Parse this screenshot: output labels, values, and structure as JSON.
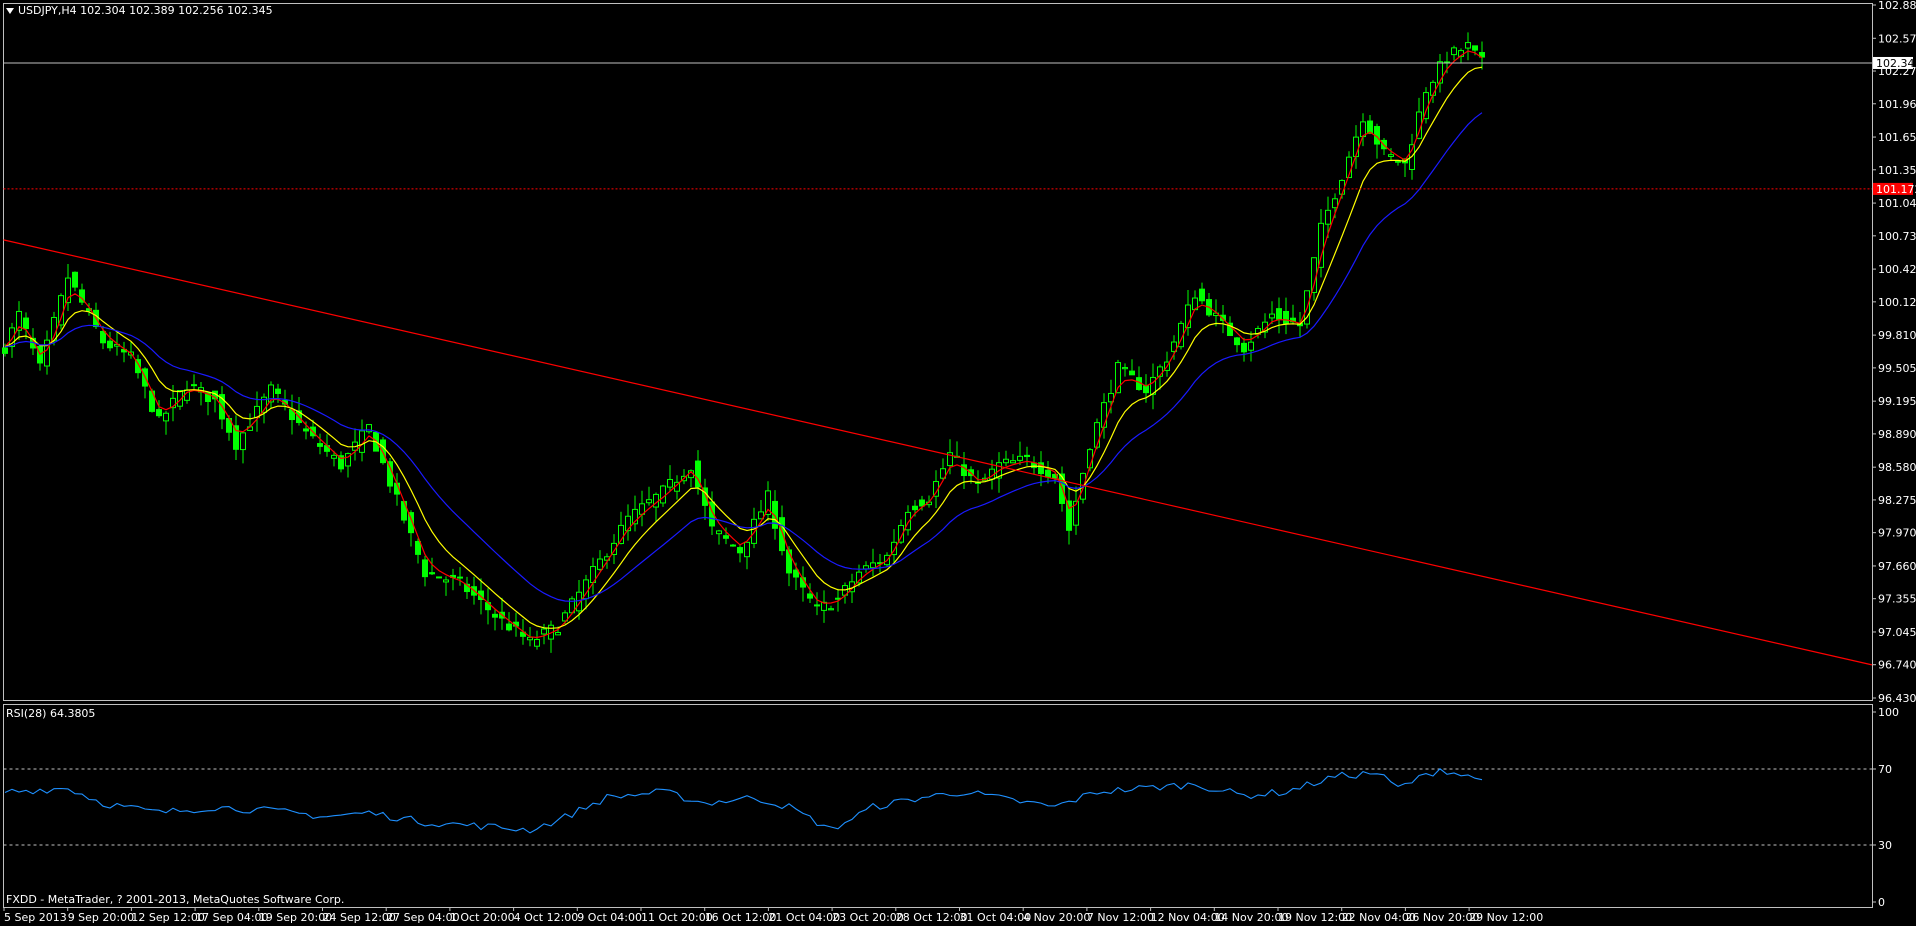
{
  "header": {
    "symbol": "USDJPY,H4",
    "open": "102.304",
    "high": "102.389",
    "low": "102.256",
    "close": "102.345"
  },
  "rsi": {
    "label": "RSI(28) 64.3805",
    "levels": [
      70,
      30
    ],
    "axis_labels": [
      "100",
      "70",
      "30",
      "0"
    ],
    "value": 64.3805
  },
  "copyright": "FXDD - MetaTrader, ? 2001-2013, MetaQuotes Software Corp.",
  "colors": {
    "background": "#000000",
    "bull_candle": "#00ff00",
    "fast_ma": "#ff0000",
    "mid_ma": "#ffff00",
    "slow_ma": "#1a1aff",
    "trendline": "#ff0000",
    "rsi_line": "#1e90ff",
    "price_label_bg": "#ffffff",
    "alert_label_bg": "#ff0000"
  },
  "chart_data": {
    "type": "candlestick",
    "symbol": "USDJPY",
    "timeframe": "H4",
    "price_axis_labels": [
      "102.885",
      "102.575",
      "102.270",
      "101.965",
      "101.655",
      "101.350",
      "101.040",
      "100.735",
      "100.425",
      "100.120",
      "99.810",
      "99.505",
      "99.195",
      "98.890",
      "98.580",
      "98.275",
      "97.970",
      "97.660",
      "97.355",
      "97.045",
      "96.740",
      "96.430"
    ],
    "y_range": [
      96.43,
      102.885
    ],
    "current_price_label": "102.345",
    "alert_level_label": "101.172",
    "time_axis_labels": [
      "5 Sep 2013",
      "9 Sep 20:00",
      "12 Sep 12:00",
      "17 Sep 04:00",
      "19 Sep 20:00",
      "24 Sep 12:00",
      "27 Sep 04:00",
      "1 Oct 20:00",
      "4 Oct 12:00",
      "9 Oct 04:00",
      "11 Oct 20:00",
      "16 Oct 12:00",
      "21 Oct 04:00",
      "23 Oct 20:00",
      "28 Oct 12:00",
      "31 Oct 04:00",
      "4 Nov 20:00",
      "7 Nov 12:00",
      "12 Nov 04:00",
      "14 Nov 20:00",
      "19 Nov 12:00",
      "22 Nov 04:00",
      "26 Nov 20:00",
      "29 Nov 12:00"
    ],
    "price_anchors": [
      [
        0,
        99.7
      ],
      [
        2,
        100.0
      ],
      [
        5,
        99.5
      ],
      [
        9,
        100.35
      ],
      [
        14,
        99.75
      ],
      [
        18,
        99.6
      ],
      [
        22,
        99.0
      ],
      [
        26,
        99.35
      ],
      [
        30,
        99.2
      ],
      [
        33,
        98.8
      ],
      [
        38,
        99.3
      ],
      [
        43,
        98.9
      ],
      [
        48,
        98.6
      ],
      [
        52,
        98.95
      ],
      [
        57,
        98.1
      ],
      [
        60,
        97.6
      ],
      [
        65,
        97.5
      ],
      [
        70,
        97.2
      ],
      [
        75,
        96.95
      ],
      [
        79,
        97.1
      ],
      [
        84,
        97.6
      ],
      [
        89,
        98.1
      ],
      [
        94,
        98.35
      ],
      [
        98,
        98.6
      ],
      [
        101,
        98.0
      ],
      [
        105,
        97.8
      ],
      [
        109,
        98.3
      ],
      [
        112,
        97.6
      ],
      [
        116,
        97.25
      ],
      [
        119,
        97.35
      ],
      [
        122,
        97.6
      ],
      [
        126,
        97.75
      ],
      [
        129,
        98.2
      ],
      [
        132,
        98.3
      ],
      [
        135,
        98.7
      ],
      [
        139,
        98.4
      ],
      [
        142,
        98.6
      ],
      [
        146,
        98.65
      ],
      [
        150,
        98.5
      ],
      [
        152,
        98.0
      ],
      [
        155,
        98.8
      ],
      [
        159,
        99.5
      ],
      [
        163,
        99.3
      ],
      [
        166,
        99.6
      ],
      [
        170,
        100.2
      ],
      [
        174,
        99.9
      ],
      [
        177,
        99.7
      ],
      [
        181,
        100.0
      ],
      [
        185,
        99.9
      ],
      [
        188,
        100.8
      ],
      [
        191,
        101.3
      ],
      [
        194,
        101.85
      ],
      [
        197,
        101.5
      ],
      [
        200,
        101.4
      ],
      [
        203,
        102.1
      ],
      [
        206,
        102.4
      ],
      [
        209,
        102.5
      ],
      [
        211,
        102.345
      ]
    ],
    "trendline_anchors": [
      [
        5,
        100.62
      ],
      [
        212,
        97.55
      ]
    ],
    "rsi_anchors": [
      [
        0,
        58
      ],
      [
        9,
        60
      ],
      [
        14,
        52
      ],
      [
        22,
        47
      ],
      [
        30,
        50
      ],
      [
        38,
        48
      ],
      [
        46,
        45
      ],
      [
        52,
        47
      ],
      [
        60,
        42
      ],
      [
        68,
        40
      ],
      [
        75,
        38
      ],
      [
        79,
        43
      ],
      [
        86,
        55
      ],
      [
        94,
        58
      ],
      [
        100,
        52
      ],
      [
        107,
        55
      ],
      [
        112,
        50
      ],
      [
        118,
        38
      ],
      [
        124,
        50
      ],
      [
        131,
        55
      ],
      [
        137,
        58
      ],
      [
        143,
        54
      ],
      [
        150,
        50
      ],
      [
        156,
        58
      ],
      [
        163,
        60
      ],
      [
        170,
        62
      ],
      [
        177,
        56
      ],
      [
        183,
        58
      ],
      [
        190,
        66
      ],
      [
        196,
        68
      ],
      [
        199,
        60
      ],
      [
        205,
        70
      ],
      [
        209,
        66
      ],
      [
        211,
        64.38
      ]
    ]
  }
}
